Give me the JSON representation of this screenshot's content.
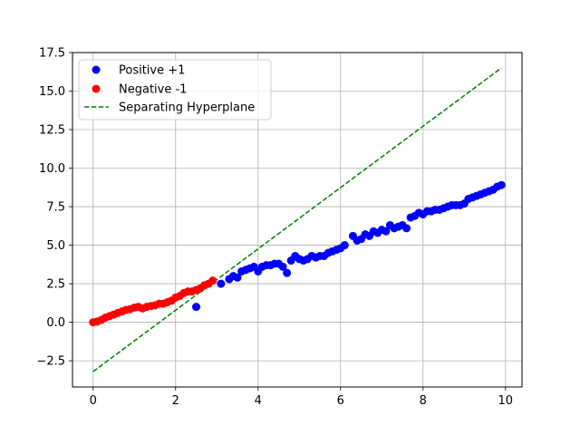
{
  "chart_data": {
    "type": "scatter",
    "title": "",
    "xlabel": "",
    "ylabel": "",
    "xlim": [
      -0.5,
      10.4
    ],
    "ylim": [
      -4.2,
      17.5
    ],
    "xticks": [
      0,
      2,
      4,
      6,
      8,
      10
    ],
    "xtick_labels": [
      "0",
      "2",
      "4",
      "6",
      "8",
      "10"
    ],
    "yticks": [
      -2.5,
      0.0,
      2.5,
      5.0,
      7.5,
      10.0,
      12.5,
      15.0,
      17.5
    ],
    "ytick_labels": [
      "−2.5",
      "0.0",
      "2.5",
      "5.0",
      "7.5",
      "10.0",
      "12.5",
      "15.0",
      "17.5"
    ],
    "grid": true,
    "legend_position": "top-left",
    "series": [
      {
        "name": "Positive +1",
        "kind": "scatter",
        "color": "#0000ff",
        "x": [
          2.5,
          3.1,
          3.3,
          3.4,
          3.5,
          3.6,
          3.7,
          3.8,
          3.9,
          4.0,
          4.1,
          4.2,
          4.3,
          4.4,
          4.5,
          4.6,
          4.7,
          4.8,
          4.9,
          5.0,
          5.1,
          5.2,
          5.3,
          5.4,
          5.5,
          5.6,
          5.7,
          5.8,
          5.9,
          6.0,
          6.1,
          6.3,
          6.4,
          6.5,
          6.6,
          6.7,
          6.8,
          6.9,
          7.0,
          7.1,
          7.2,
          7.3,
          7.4,
          7.5,
          7.6,
          7.7,
          7.8,
          7.9,
          8.0,
          8.1,
          8.2,
          8.3,
          8.4,
          8.5,
          8.6,
          8.7,
          8.8,
          8.9,
          9.0,
          9.1,
          9.2,
          9.3,
          9.4,
          9.5,
          9.6,
          9.7,
          9.8,
          9.9
        ],
        "y": [
          1.0,
          2.5,
          2.8,
          3.0,
          2.9,
          3.3,
          3.4,
          3.5,
          3.6,
          3.3,
          3.6,
          3.7,
          3.7,
          3.8,
          3.8,
          3.6,
          3.2,
          4.0,
          4.3,
          4.1,
          4.0,
          4.1,
          4.3,
          4.2,
          4.3,
          4.3,
          4.5,
          4.6,
          4.7,
          4.8,
          5.0,
          5.6,
          5.3,
          5.4,
          5.7,
          5.6,
          5.9,
          5.8,
          6.0,
          5.9,
          6.3,
          6.1,
          6.2,
          6.3,
          6.1,
          6.8,
          6.9,
          7.1,
          7.0,
          7.2,
          7.2,
          7.3,
          7.3,
          7.4,
          7.5,
          7.6,
          7.6,
          7.6,
          7.7,
          8.0,
          8.1,
          8.2,
          8.3,
          8.4,
          8.5,
          8.6,
          8.8,
          8.9
        ]
      },
      {
        "name": "Negative -1",
        "kind": "scatter",
        "color": "#ff0000",
        "x": [
          0.0,
          0.1,
          0.2,
          0.3,
          0.4,
          0.5,
          0.6,
          0.7,
          0.8,
          0.9,
          1.0,
          1.1,
          1.2,
          1.3,
          1.4,
          1.5,
          1.6,
          1.7,
          1.8,
          1.9,
          2.0,
          2.1,
          2.2,
          2.3,
          2.4,
          2.5,
          2.6,
          2.7,
          2.8,
          2.9
        ],
        "y": [
          0.0,
          0.05,
          0.15,
          0.3,
          0.4,
          0.5,
          0.6,
          0.7,
          0.8,
          0.85,
          0.95,
          1.0,
          0.9,
          1.0,
          1.05,
          1.1,
          1.2,
          1.2,
          1.3,
          1.4,
          1.6,
          1.7,
          1.9,
          2.0,
          2.0,
          2.1,
          2.2,
          2.4,
          2.5,
          2.7
        ]
      },
      {
        "name": "Separating Hyperplane",
        "kind": "line",
        "dashed": true,
        "color": "#008000",
        "x": [
          0.0,
          9.9
        ],
        "y": [
          -3.2,
          16.5
        ]
      }
    ]
  }
}
